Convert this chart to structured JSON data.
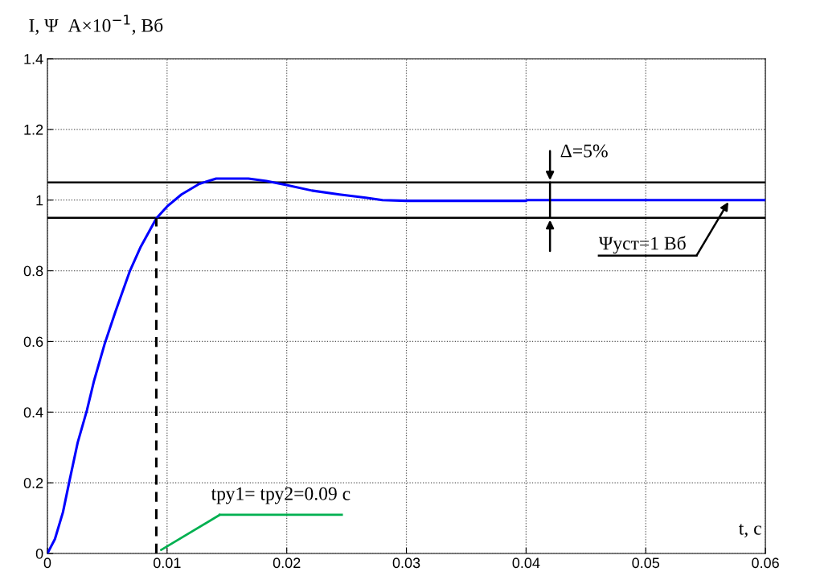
{
  "chart_data": {
    "type": "line",
    "xlabel": "t, с",
    "ylabel": "I, Ψ  A×10$^{−1}$, Вб",
    "xlim": [
      0,
      0.06
    ],
    "xticks": [
      0,
      0.01,
      0.02,
      0.03,
      0.04,
      0.05,
      0.06
    ],
    "ylim": [
      0,
      1.4
    ],
    "yticks": [
      0,
      0.2,
      0.4,
      0.6,
      0.8,
      1,
      1.2,
      1.4
    ],
    "grid": true,
    "marker": "none",
    "series": [
      {
        "color": "#0000ff",
        "line_style": "solid",
        "x": [
          0,
          0.00063,
          0.0013,
          0.00186,
          0.00253,
          0.0033,
          0.0039,
          0.0048,
          0.0057,
          0.0069,
          0.0078,
          0.0091,
          0.01,
          0.0112,
          0.0127,
          0.0141,
          0.0168,
          0.0183,
          0.0199,
          0.0221,
          0.0244,
          0.0266,
          0.028,
          0.03,
          0.04,
          0.0401,
          0.06
        ],
        "values": [
          0,
          0.041,
          0.117,
          0.208,
          0.314,
          0.405,
          0.489,
          0.595,
          0.686,
          0.8,
          0.868,
          0.948,
          0.982,
          1.016,
          1.046,
          1.061,
          1.061,
          1.054,
          1.043,
          1.027,
          1.016,
          1.007,
          1.0,
          0.998,
          0.998,
          1.0,
          1.0
        ]
      },
      {
        "color": "#000000",
        "line_style": "dashed",
        "x": [
          0.0091,
          0.0091
        ],
        "values": [
          0,
          0.95
        ]
      }
    ],
    "ref_lines": [
      {
        "axis": "y",
        "value": 1.05,
        "color": "#000000",
        "line_style": "solid"
      },
      {
        "axis": "y",
        "value": 0.95,
        "color": "#000000",
        "line_style": "solid"
      }
    ],
    "annotations": [
      {
        "text": "Δ=5%",
        "x": 0.042,
        "y": 1.05
      },
      {
        "text": "Ψуст=1 Вб",
        "x": 0.057,
        "y": 1.0
      },
      "tру1= tру2=0.09 с"
    ]
  }
}
